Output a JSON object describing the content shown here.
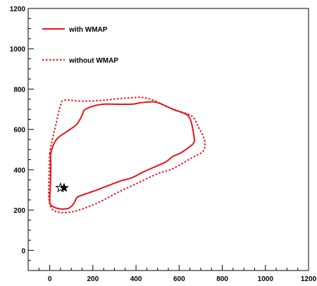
{
  "chart_data": {
    "type": "line",
    "title": "",
    "xlabel": "",
    "ylabel": "",
    "xlim": [
      -100,
      1200
    ],
    "ylim": [
      -100,
      1200
    ],
    "x_ticks": [
      0,
      200,
      400,
      600,
      800,
      1000,
      1200
    ],
    "y_ticks": [
      0,
      200,
      400,
      600,
      800,
      1000,
      1200
    ],
    "x_tick_labels": [
      "0",
      "200",
      "400",
      "600",
      "800",
      "1000",
      "1200"
    ],
    "y_tick_labels": [
      "0",
      "200",
      "400",
      "600",
      "800",
      "1000",
      "1200"
    ],
    "grid": false,
    "legend_position": "top-left",
    "series": [
      {
        "name": "with WMAP",
        "style": "solid",
        "color": "#e8141b",
        "closed": true,
        "points": [
          [
            5,
            480
          ],
          [
            20,
            530
          ],
          [
            40,
            560
          ],
          [
            80,
            590
          ],
          [
            125,
            625
          ],
          [
            150,
            670
          ],
          [
            160,
            695
          ],
          [
            200,
            715
          ],
          [
            250,
            725
          ],
          [
            300,
            725
          ],
          [
            380,
            725
          ],
          [
            420,
            732
          ],
          [
            480,
            737
          ],
          [
            520,
            725
          ],
          [
            570,
            700
          ],
          [
            610,
            685
          ],
          [
            640,
            670
          ],
          [
            655,
            640
          ],
          [
            665,
            590
          ],
          [
            670,
            540
          ],
          [
            650,
            515
          ],
          [
            610,
            485
          ],
          [
            570,
            465
          ],
          [
            540,
            440
          ],
          [
            500,
            420
          ],
          [
            440,
            392
          ],
          [
            380,
            360
          ],
          [
            330,
            345
          ],
          [
            280,
            325
          ],
          [
            220,
            300
          ],
          [
            180,
            285
          ],
          [
            130,
            265
          ],
          [
            120,
            250
          ],
          [
            110,
            230
          ],
          [
            90,
            210
          ],
          [
            60,
            205
          ],
          [
            30,
            210
          ],
          [
            5,
            225
          ],
          [
            0,
            250
          ],
          [
            3,
            320
          ],
          [
            5,
            420
          ]
        ]
      },
      {
        "name": "without WMAP",
        "style": "dotted",
        "color": "#e8141b",
        "closed": true,
        "points": [
          [
            0,
            480
          ],
          [
            10,
            540
          ],
          [
            30,
            630
          ],
          [
            50,
            720
          ],
          [
            70,
            745
          ],
          [
            150,
            740
          ],
          [
            250,
            745
          ],
          [
            350,
            755
          ],
          [
            450,
            755
          ],
          [
            550,
            710
          ],
          [
            600,
            690
          ],
          [
            660,
            665
          ],
          [
            690,
            610
          ],
          [
            710,
            570
          ],
          [
            720,
            530
          ],
          [
            710,
            490
          ],
          [
            660,
            460
          ],
          [
            570,
            405
          ],
          [
            500,
            380
          ],
          [
            400,
            330
          ],
          [
            320,
            290
          ],
          [
            250,
            250
          ],
          [
            200,
            225
          ],
          [
            150,
            205
          ],
          [
            100,
            190
          ],
          [
            50,
            188
          ],
          [
            15,
            200
          ],
          [
            0,
            230
          ],
          [
            -5,
            290
          ],
          [
            -2,
            400
          ]
        ]
      },
      {
        "name": "star-marker",
        "style": "marker",
        "color": "#000000",
        "points": [
          [
            60,
            310
          ]
        ]
      }
    ],
    "legend": [
      {
        "label": "with WMAP",
        "style": "solid",
        "color": "#e8141b"
      },
      {
        "label": "without WMAP",
        "style": "dotted",
        "color": "#e8141b"
      }
    ]
  }
}
